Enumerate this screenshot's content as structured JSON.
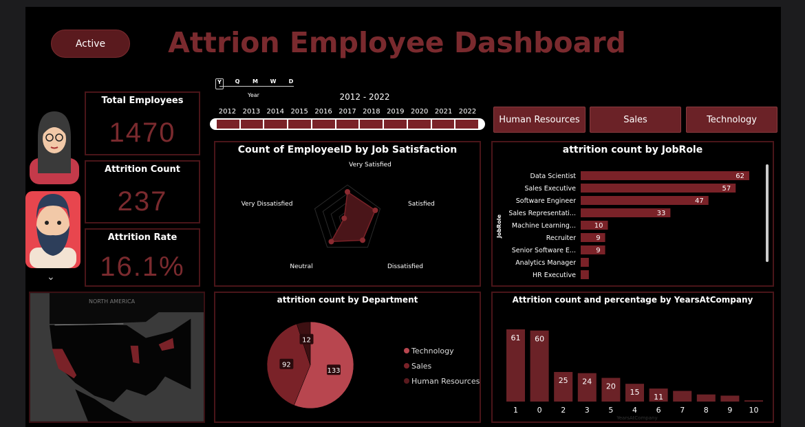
{
  "header": {
    "title": "Attrion Employee Dashboard",
    "active_button": "Active"
  },
  "kpis": [
    {
      "label": "Total Employees",
      "value": "1470"
    },
    {
      "label": "Attrition Count",
      "value": "237"
    },
    {
      "label": "Attrition Rate",
      "value": "16.1%"
    }
  ],
  "timeline": {
    "granularity": [
      "Y",
      "Q",
      "M",
      "W",
      "D"
    ],
    "selected_granularity": "Year",
    "range": "2012 - 2022",
    "years": [
      "2012",
      "2013",
      "2014",
      "2015",
      "2016",
      "2017",
      "2018",
      "2019",
      "2020",
      "2021",
      "2022"
    ]
  },
  "department_buttons": [
    "Human Resources",
    "Sales",
    "Technology"
  ],
  "map": {
    "label": "NORTH AMERICA"
  },
  "colors": {
    "accent": "#6b2227",
    "title": "#7a2a2e",
    "border": "#4a1519"
  },
  "chart_data": [
    {
      "type": "radar",
      "title": "Count of EmployeeID by Job Satisfaction",
      "categories": [
        "Very Satisfied",
        "Satisfied",
        "Dissatisfied",
        "Neutral",
        "Very Dissatisfied"
      ],
      "values": [
        0.8,
        0.85,
        0.75,
        0.8,
        0.1
      ]
    },
    {
      "type": "bar",
      "orientation": "horizontal",
      "title": "attrition count by JobRole",
      "ylabel": "JobRole",
      "categories": [
        "Data Scientist",
        "Sales Executive",
        "Software Engineer",
        "Sales Representati...",
        "Machine Learning...",
        "Recruiter",
        "Senior Software E...",
        "Analytics Manager",
        "HR Executive"
      ],
      "values": [
        62,
        57,
        47,
        33,
        10,
        9,
        9,
        3,
        3
      ],
      "labels": [
        "62",
        "57",
        "47",
        "33",
        "10",
        "9",
        "9",
        "",
        ""
      ]
    },
    {
      "type": "pie",
      "title": "attrition count by Department",
      "categories": [
        "Technology",
        "Sales",
        "Human Resources"
      ],
      "values": [
        133,
        92,
        12
      ],
      "colors": [
        "#b8464f",
        "#7a2228",
        "#3d1012"
      ]
    },
    {
      "type": "bar",
      "title": "Attrition count and percentage by YearsAtCompany",
      "xlabel": "YearsAtCompany",
      "categories": [
        "1",
        "0",
        "2",
        "3",
        "5",
        "4",
        "6",
        "7",
        "8",
        "9",
        "10"
      ],
      "values": [
        61,
        60,
        25,
        24,
        20,
        15,
        11,
        9,
        6,
        5,
        1
      ],
      "labels": [
        "61",
        "60",
        "25",
        "24",
        "20",
        "15",
        "11",
        "",
        "",
        "",
        ""
      ]
    }
  ]
}
